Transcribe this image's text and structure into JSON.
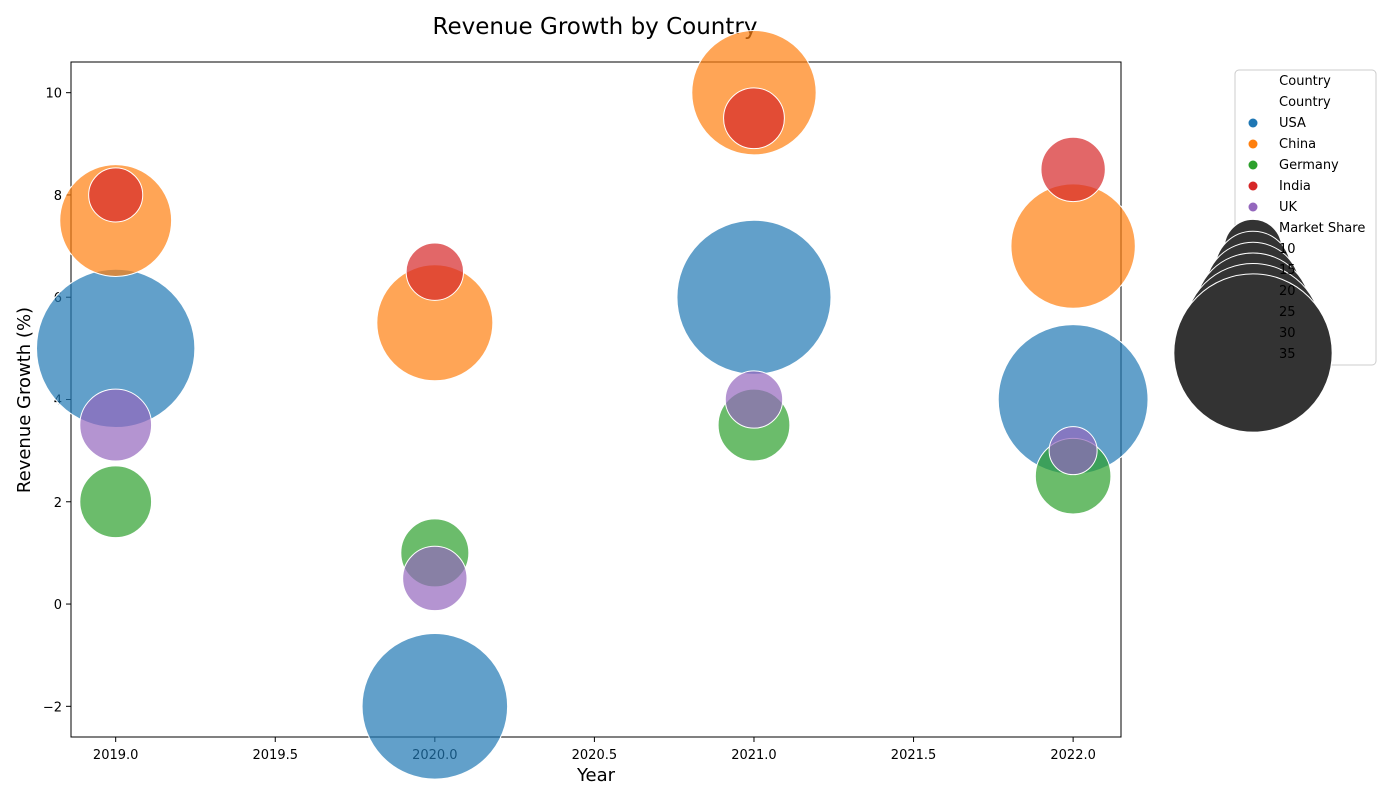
{
  "chart_data": {
    "type": "scatter",
    "title": "Revenue Growth by Country",
    "xlabel": "Year",
    "ylabel": "Revenue Growth (%)",
    "xlim": [
      2018.86,
      2022.15
    ],
    "ylim": [
      -2.6,
      10.6
    ],
    "xticks": [
      2019.0,
      2019.5,
      2020.0,
      2020.5,
      2021.0,
      2021.5,
      2022.0
    ],
    "xtick_labels": [
      "2019.0",
      "2019.5",
      "2020.0",
      "2020.5",
      "2021.0",
      "2021.5",
      "2022.0"
    ],
    "yticks": [
      -2,
      0,
      2,
      4,
      6,
      8,
      10
    ],
    "ytick_labels": [
      "−2",
      "0",
      "2",
      "4",
      "6",
      "8",
      "10"
    ],
    "grid": false,
    "legend_placement": "outside-right",
    "legend": {
      "title": "Country",
      "hue_heading": "Country",
      "size_heading": "Market Share",
      "size_entries": [
        10,
        15,
        20,
        25,
        30,
        35
      ],
      "size_labels": [
        "10",
        "15",
        "20",
        "25",
        "30",
        "35"
      ]
    },
    "series": [
      {
        "name": "USA",
        "color": "#1f77b4",
        "points": [
          {
            "x": 2019,
            "y": 5.0,
            "size": 35
          },
          {
            "x": 2020,
            "y": -2.0,
            "size": 32
          },
          {
            "x": 2021,
            "y": 6.0,
            "size": 34
          },
          {
            "x": 2022,
            "y": 4.0,
            "size": 33
          }
        ]
      },
      {
        "name": "China",
        "color": "#ff7f0e",
        "points": [
          {
            "x": 2019,
            "y": 7.5,
            "size": 24
          },
          {
            "x": 2020,
            "y": 5.5,
            "size": 25
          },
          {
            "x": 2021,
            "y": 10.0,
            "size": 27
          },
          {
            "x": 2022,
            "y": 7.0,
            "size": 27
          }
        ]
      },
      {
        "name": "Germany",
        "color": "#2ca02c",
        "points": [
          {
            "x": 2019,
            "y": 2.0,
            "size": 14
          },
          {
            "x": 2020,
            "y": 1.0,
            "size": 13
          },
          {
            "x": 2021,
            "y": 3.5,
            "size": 14
          },
          {
            "x": 2022,
            "y": 2.5,
            "size": 15
          }
        ]
      },
      {
        "name": "India",
        "color": "#d62728",
        "points": [
          {
            "x": 2019,
            "y": 8.0,
            "size": 9
          },
          {
            "x": 2020,
            "y": 6.5,
            "size": 10
          },
          {
            "x": 2021,
            "y": 9.5,
            "size": 11
          },
          {
            "x": 2022,
            "y": 8.5,
            "size": 12
          }
        ]
      },
      {
        "name": "UK",
        "color": "#9467bd",
        "points": [
          {
            "x": 2019,
            "y": 3.5,
            "size": 14
          },
          {
            "x": 2020,
            "y": 0.5,
            "size": 12
          },
          {
            "x": 2021,
            "y": 4.0,
            "size": 10
          },
          {
            "x": 2022,
            "y": 3.0,
            "size": 7
          }
        ]
      }
    ]
  }
}
